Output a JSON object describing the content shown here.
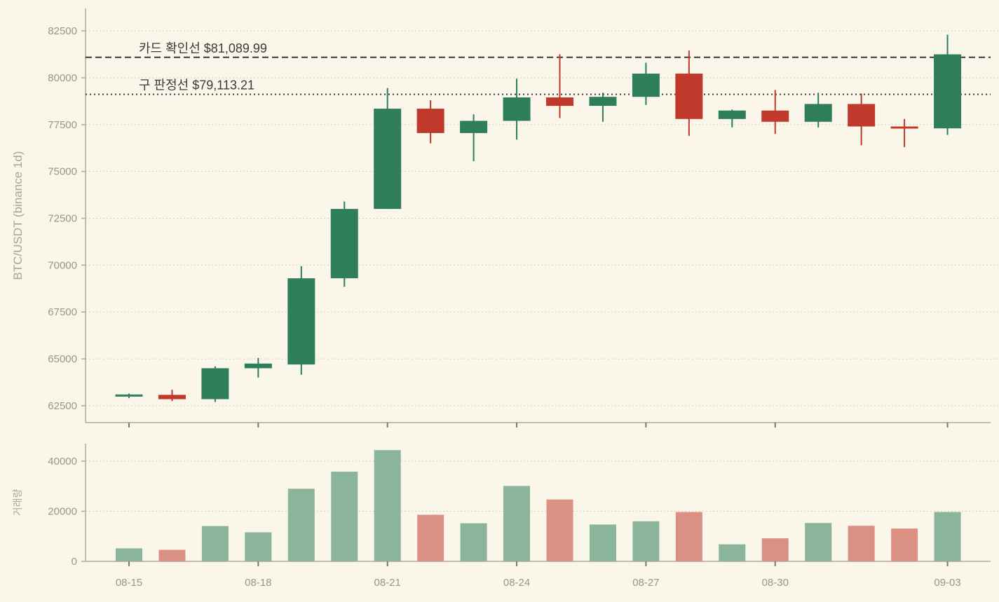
{
  "chart_data": [
    {
      "type": "candlestick",
      "ylabel": "BTC/USDT (binance 1d)",
      "ylim": [
        61600,
        83700
      ],
      "yticks": [
        62500,
        65000,
        67500,
        70000,
        72500,
        75000,
        77500,
        80000,
        82500
      ],
      "grid": true,
      "colors": {
        "up": "#2e7d5b",
        "down": "#c0392b"
      },
      "x": [
        "08-15",
        "08-16",
        "08-17",
        "08-18",
        "08-19",
        "08-20",
        "08-21",
        "08-22",
        "08-23",
        "08-24",
        "08-25",
        "08-26",
        "08-27",
        "08-28",
        "08-29",
        "08-30",
        "08-31",
        "09-01",
        "09-02",
        "09-03"
      ],
      "ohlc": [
        {
          "o": 63000,
          "h": 63150,
          "l": 62900,
          "c": 63100
        },
        {
          "o": 63080,
          "h": 63350,
          "l": 62750,
          "c": 62850
        },
        {
          "o": 62850,
          "h": 64600,
          "l": 62700,
          "c": 64500
        },
        {
          "o": 64500,
          "h": 65050,
          "l": 64000,
          "c": 64750
        },
        {
          "o": 64700,
          "h": 69950,
          "l": 64150,
          "c": 69300
        },
        {
          "o": 69300,
          "h": 73400,
          "l": 68850,
          "c": 73000
        },
        {
          "o": 73000,
          "h": 79450,
          "l": 73000,
          "c": 78350
        },
        {
          "o": 78350,
          "h": 78800,
          "l": 76500,
          "c": 77050
        },
        {
          "o": 77050,
          "h": 78050,
          "l": 75550,
          "c": 77700
        },
        {
          "o": 77700,
          "h": 79950,
          "l": 76700,
          "c": 78950
        },
        {
          "o": 78950,
          "h": 81250,
          "l": 77850,
          "c": 78500
        },
        {
          "o": 78500,
          "h": 79200,
          "l": 77650,
          "c": 78980
        },
        {
          "o": 78980,
          "h": 80800,
          "l": 78550,
          "c": 80220
        },
        {
          "o": 80220,
          "h": 81450,
          "l": 76900,
          "c": 77800
        },
        {
          "o": 77800,
          "h": 78300,
          "l": 77350,
          "c": 78250
        },
        {
          "o": 78250,
          "h": 79350,
          "l": 77000,
          "c": 77650
        },
        {
          "o": 77650,
          "h": 79200,
          "l": 77350,
          "c": 78600
        },
        {
          "o": 78600,
          "h": 79150,
          "l": 76400,
          "c": 77400
        },
        {
          "o": 77400,
          "h": 77800,
          "l": 76300,
          "c": 77300
        },
        {
          "o": 77300,
          "h": 82300,
          "l": 76950,
          "c": 81250
        }
      ],
      "reference_lines": [
        {
          "label": "카드 확인선 $81,089.99",
          "value": 81089.99,
          "style": "dashed"
        },
        {
          "label": "구 판정선 $79,113.21",
          "value": 79113.21,
          "style": "dotted"
        }
      ]
    },
    {
      "type": "bar",
      "ylabel": "거래량",
      "ylim": [
        0,
        47000
      ],
      "yticks": [
        0,
        20000,
        40000
      ],
      "grid": true,
      "colors": {
        "up": "#8ab59b",
        "down": "#da9184"
      },
      "xticks": [
        "08-15",
        "08-18",
        "08-21",
        "08-24",
        "08-27",
        "08-30",
        "09-03"
      ],
      "x": [
        "08-15",
        "08-16",
        "08-17",
        "08-18",
        "08-19",
        "08-20",
        "08-21",
        "08-22",
        "08-23",
        "08-24",
        "08-25",
        "08-26",
        "08-27",
        "08-28",
        "08-29",
        "08-30",
        "08-31",
        "09-01",
        "09-02",
        "09-03"
      ],
      "values": [
        5200,
        4600,
        14100,
        11600,
        29000,
        35800,
        44400,
        18600,
        15200,
        30100,
        24700,
        14700,
        16000,
        19700,
        6800,
        9200,
        15300,
        14200,
        13100,
        19700
      ],
      "direction": [
        "up",
        "down",
        "up",
        "up",
        "up",
        "up",
        "up",
        "down",
        "up",
        "up",
        "down",
        "up",
        "up",
        "down",
        "up",
        "down",
        "up",
        "down",
        "down",
        "up"
      ]
    }
  ]
}
